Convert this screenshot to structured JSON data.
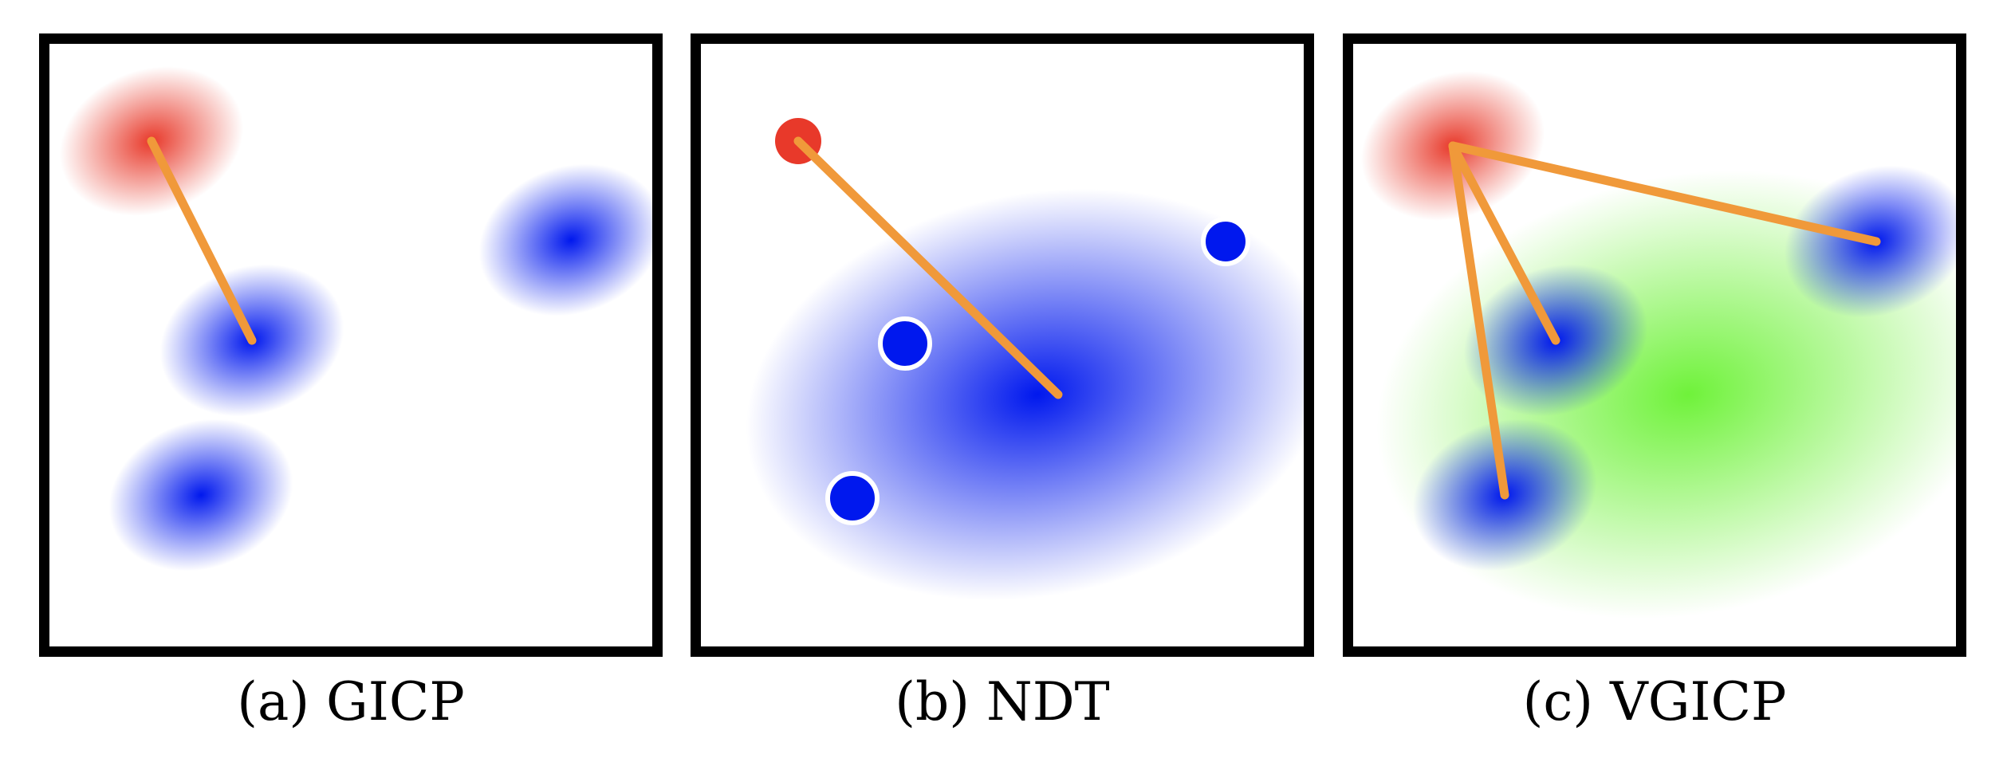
{
  "panels": [
    {
      "caption": "(a) GICP"
    },
    {
      "caption": "(b) NDT"
    },
    {
      "caption": "(c) VGICP"
    }
  ],
  "colors": {
    "source": "#e8392a",
    "target": "#0018ee",
    "voxel": "#6ff23a",
    "correspondence": "#f0993a",
    "frame": "#000000"
  }
}
